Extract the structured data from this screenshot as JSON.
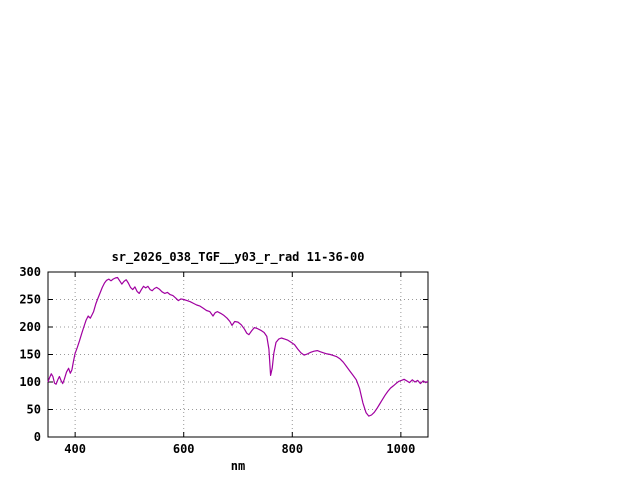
{
  "chart_data": {
    "type": "line",
    "title": "sr_2026_038_TGF__y03_r_rad 11-36-00",
    "xlabel": "nm",
    "ylabel": "",
    "xlim": [
      350,
      1050
    ],
    "ylim": [
      0,
      300
    ],
    "xticks": [
      400,
      600,
      800,
      1000
    ],
    "yticks": [
      0,
      50,
      100,
      150,
      200,
      250,
      300
    ],
    "grid": true,
    "legend_position": "none",
    "line_color": "#a000a0",
    "grid_color": "#999999",
    "border_color": "#000000",
    "background_color": "#ffffff",
    "series": [
      {
        "name": "sr_2026_038_TGF__y03_r_rad",
        "x": [
          350,
          353,
          356,
          359,
          362,
          365,
          368,
          371,
          374,
          377,
          380,
          384,
          388,
          391,
          394,
          397,
          400,
          404,
          408,
          412,
          416,
          420,
          424,
          428,
          431,
          434,
          438,
          442,
          446,
          450,
          454,
          458,
          462,
          466,
          470,
          474,
          478,
          482,
          486,
          490,
          494,
          498,
          502,
          506,
          510,
          514,
          518,
          522,
          526,
          530,
          534,
          538,
          542,
          546,
          550,
          555,
          560,
          565,
          570,
          575,
          580,
          585,
          590,
          595,
          600,
          606,
          612,
          618,
          624,
          630,
          636,
          642,
          648,
          654,
          658,
          662,
          668,
          674,
          680,
          685,
          689,
          694,
          700,
          706,
          712,
          716,
          720,
          725,
          730,
          736,
          742,
          748,
          753,
          757,
          760,
          763,
          766,
          770,
          775,
          780,
          786,
          792,
          798,
          804,
          810,
          816,
          822,
          828,
          834,
          840,
          846,
          852,
          858,
          864,
          870,
          876,
          882,
          888,
          894,
          900,
          906,
          912,
          918,
          924,
          930,
          936,
          941,
          946,
          951,
          956,
          961,
          966,
          971,
          976,
          981,
          986,
          991,
          996,
          1001,
          1006,
          1011,
          1016,
          1021,
          1026,
          1031,
          1036,
          1041,
          1046,
          1050
        ],
        "y": [
          100,
          108,
          115,
          110,
          98,
          96,
          104,
          110,
          103,
          97,
          105,
          118,
          125,
          116,
          122,
          138,
          152,
          163,
          175,
          188,
          200,
          212,
          220,
          216,
          222,
          228,
          242,
          252,
          262,
          272,
          280,
          285,
          287,
          284,
          287,
          289,
          290,
          284,
          278,
          283,
          286,
          280,
          272,
          268,
          273,
          265,
          261,
          268,
          274,
          271,
          274,
          268,
          266,
          270,
          272,
          269,
          264,
          261,
          263,
          259,
          257,
          253,
          248,
          251,
          250,
          248,
          246,
          243,
          240,
          238,
          234,
          230,
          228,
          220,
          226,
          228,
          225,
          221,
          216,
          210,
          203,
          210,
          209,
          204,
          196,
          189,
          186,
          193,
          199,
          197,
          194,
          190,
          183,
          160,
          112,
          125,
          152,
          172,
          178,
          180,
          178,
          176,
          172,
          168,
          160,
          153,
          149,
          151,
          154,
          156,
          157,
          155,
          153,
          151,
          150,
          148,
          146,
          142,
          136,
          128,
          120,
          112,
          104,
          88,
          62,
          44,
          38,
          40,
          45,
          52,
          60,
          68,
          76,
          83,
          89,
          93,
          97,
          101,
          103,
          105,
          102,
          99,
          104,
          100,
          103,
          97,
          102,
          99,
          101
        ]
      }
    ]
  }
}
